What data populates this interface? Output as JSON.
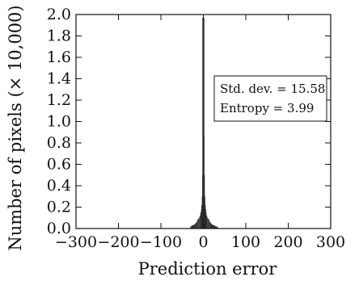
{
  "chart_data": {
    "type": "bar",
    "title": "",
    "xlabel": "Prediction error",
    "ylabel": "Number of pixels (× 10,000)",
    "xlim": [
      -300,
      300
    ],
    "ylim": [
      0,
      2.0
    ],
    "xticks": [
      -300,
      -200,
      -100,
      0,
      100,
      200,
      300
    ],
    "xtick_labels": [
      "−300",
      "−200",
      "−100",
      "0",
      "100",
      "200",
      "300"
    ],
    "yticks": [
      0.0,
      0.2,
      0.4,
      0.6,
      0.8,
      1.0,
      1.2,
      1.4,
      1.6,
      1.8,
      2.0
    ],
    "ytick_labels": [
      "0.0",
      "0.2",
      "0.4",
      "0.6",
      "0.8",
      "1.0",
      "1.2",
      "1.4",
      "1.6",
      "1.8",
      "2.0"
    ],
    "grid": false,
    "bar_color": "#2a2a2a",
    "x": [
      -30,
      -25,
      -20,
      -18,
      -16,
      -14,
      -12,
      -10,
      -8,
      -6,
      -5,
      -4,
      -3,
      -2,
      -1,
      0,
      1,
      2,
      3,
      4,
      5,
      6,
      8,
      10,
      12,
      14,
      16,
      18,
      20,
      25,
      30,
      35
    ],
    "values": [
      0.02,
      0.03,
      0.04,
      0.05,
      0.06,
      0.08,
      0.09,
      0.1,
      0.12,
      0.15,
      0.18,
      0.22,
      0.3,
      0.5,
      0.87,
      1.97,
      0.87,
      0.5,
      0.3,
      0.22,
      0.18,
      0.15,
      0.12,
      0.1,
      0.09,
      0.08,
      0.06,
      0.05,
      0.04,
      0.03,
      0.02,
      0.01
    ],
    "annotations": [
      "Std. dev. = 15.58",
      "Entropy = 3.99"
    ]
  }
}
